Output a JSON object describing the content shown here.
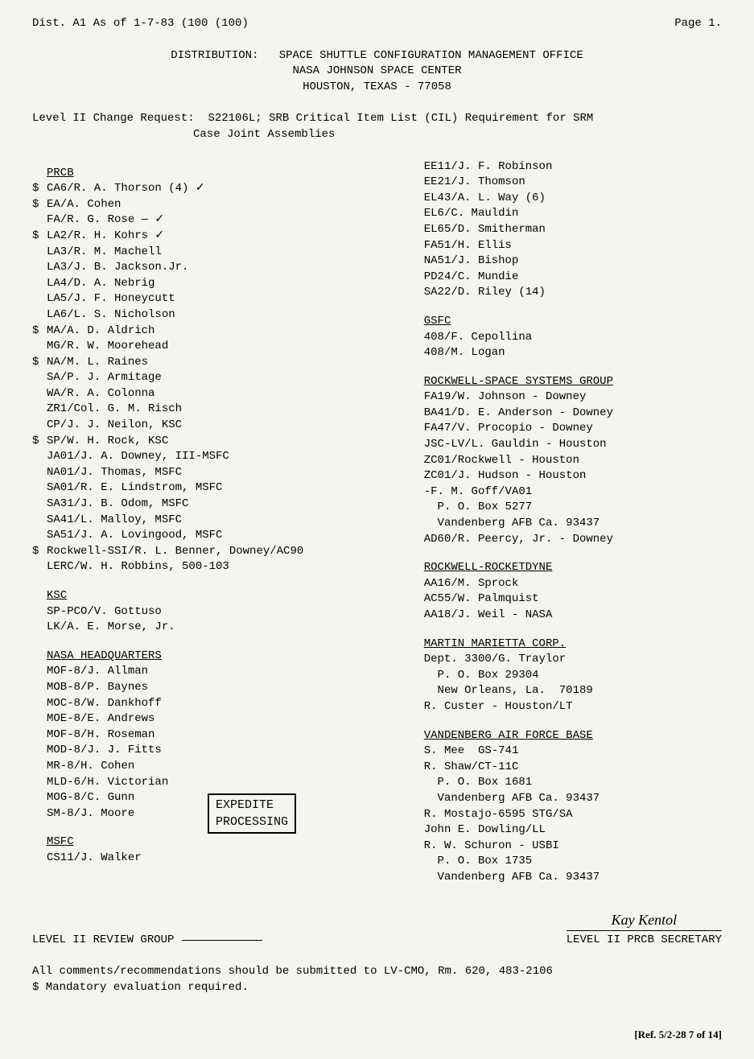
{
  "header": {
    "dist_line": "Dist. A1 As of 1-7-83 (100  (100)",
    "page": "Page 1."
  },
  "distribution": {
    "label": "DISTRIBUTION:",
    "line1": "SPACE SHUTTLE CONFIGURATION MANAGEMENT OFFICE",
    "line2": "NASA JOHNSON SPACE CENTER",
    "line3": "HOUSTON, TEXAS - 77058"
  },
  "change_request": {
    "label": "Level II Change Request:",
    "text1": "S22106L; SRB Critical Item List (CIL) Requirement for SRM",
    "text2": "Case Joint Assemblies"
  },
  "left_col": {
    "prcb_header": "PRCB",
    "entries": [
      {
        "dollar": true,
        "text": "CA6/R. A. Thorson (4) ✓"
      },
      {
        "dollar": true,
        "text": "EA/A. Cohen"
      },
      {
        "dollar": false,
        "text": "FA/R. G. Rose    —  ✓"
      },
      {
        "dollar": true,
        "text": "LA2/R. H. Kohrs ✓"
      },
      {
        "dollar": false,
        "text": "LA3/R. M. Machell"
      },
      {
        "dollar": false,
        "text": "LA3/J. B. Jackson.Jr."
      },
      {
        "dollar": false,
        "text": "LA4/D. A. Nebrig"
      },
      {
        "dollar": false,
        "text": "LA5/J. F. Honeycutt"
      },
      {
        "dollar": false,
        "text": "LA6/L. S. Nicholson"
      },
      {
        "dollar": true,
        "text": "MA/A. D. Aldrich"
      },
      {
        "dollar": false,
        "text": "MG/R. W. Moorehead"
      },
      {
        "dollar": true,
        "text": "NA/M. L. Raines"
      },
      {
        "dollar": false,
        "text": "SA/P. J. Armitage"
      },
      {
        "dollar": false,
        "text": "WA/R. A. Colonna"
      },
      {
        "dollar": false,
        "text": "ZR1/Col. G. M. Risch"
      },
      {
        "dollar": false,
        "text": "CP/J. J. Neilon, KSC"
      },
      {
        "dollar": true,
        "text": "SP/W. H. Rock, KSC"
      },
      {
        "dollar": false,
        "text": "JA01/J. A. Downey, III-MSFC"
      },
      {
        "dollar": false,
        "text": "NA01/J. Thomas, MSFC"
      },
      {
        "dollar": false,
        "text": "SA01/R. E. Lindstrom, MSFC"
      },
      {
        "dollar": false,
        "text": "SA31/J. B. Odom, MSFC"
      },
      {
        "dollar": false,
        "text": "SA41/L. Malloy, MSFC"
      },
      {
        "dollar": false,
        "text": "SA51/J. A. Lovingood, MSFC"
      },
      {
        "dollar": true,
        "text": "Rockwell-SSI/R. L. Benner, Downey/AC90"
      },
      {
        "dollar": false,
        "text": "LERC/W. H. Robbins, 500-103"
      }
    ],
    "ksc_header": "KSC",
    "ksc": [
      "SP-PCO/V. Gottuso",
      "LK/A. E. Morse, Jr."
    ],
    "nasa_hq_header": "NASA HEADQUARTERS",
    "nasa_hq": [
      "MOF-8/J. Allman",
      "MOB-8/P. Baynes",
      "MOC-8/W. Dankhoff",
      "MOE-8/E. Andrews",
      "MOF-8/H. Roseman",
      "MOD-8/J. J. Fitts",
      "MR-8/H. Cohen",
      "MLD-6/H. Victorian",
      "MOG-8/C. Gunn",
      "SM-8/J. Moore"
    ],
    "msfc_header": "MSFC",
    "msfc": [
      "CS11/J. Walker"
    ],
    "expedite": "EXPEDITE\nPROCESSING"
  },
  "right_col": {
    "top_entries": [
      "EE11/J. F. Robinson",
      "EE21/J. Thomson",
      "EL43/A. L. Way (6)",
      "EL6/C. Mauldin",
      "EL65/D. Smitherman",
      "FA51/H. Ellis",
      "NA51/J. Bishop",
      "PD24/C. Mundie",
      "SA22/D. Riley (14)"
    ],
    "gsfc_header": "GSFC",
    "gsfc": [
      "408/F. Cepollina",
      "408/M. Logan"
    ],
    "rockwell_ssg_header": "ROCKWELL-SPACE SYSTEMS GROUP",
    "rockwell_ssg": [
      "FA19/W. Johnson - Downey",
      "BA41/D. E. Anderson - Downey",
      "FA47/V. Procopio - Downey",
      "JSC-LV/L. Gauldin - Houston",
      "ZC01/Rockwell - Houston",
      "ZC01/J. Hudson - Houston",
      "-F. M. Goff/VA01",
      "  P. O. Box 5277",
      "  Vandenberg AFB Ca. 93437",
      "AD60/R. Peercy, Jr. - Downey"
    ],
    "rocketdyne_header": "ROCKWELL-ROCKETDYNE",
    "rocketdyne": [
      "AA16/M. Sprock",
      "AC55/W. Palmquist",
      "AA18/J. Weil - NASA"
    ],
    "martin_header": "MARTIN MARIETTA CORP.",
    "martin": [
      "Dept. 3300/G. Traylor",
      "  P. O. Box 29304",
      "  New Orleans, La.  70189",
      "R. Custer - Houston/LT"
    ],
    "vafb_header": "VANDENBERG AIR FORCE BASE",
    "vafb": [
      "S. Mee  GS-741",
      "R. Shaw/CT-11C",
      "  P. O. Box 1681",
      "  Vandenberg AFB Ca. 93437",
      "R. Mostajo-6595 STG/SA",
      "John E. Dowling/LL",
      "R. W. Schuron - USBI",
      "  P. O. Box 1735",
      "  Vandenberg AFB Ca. 93437"
    ]
  },
  "footer": {
    "review_group": "LEVEL II REVIEW GROUP",
    "secretary": "LEVEL II PRCB SECRETARY",
    "signature": "Kay Kentol",
    "comments": "All comments/recommendations should be submitted to LV-CMO, Rm. 620, 483-2106",
    "mandatory": "$ Mandatory evaluation required.",
    "ref": "[Ref. 5/2-28 7 of 14]"
  }
}
